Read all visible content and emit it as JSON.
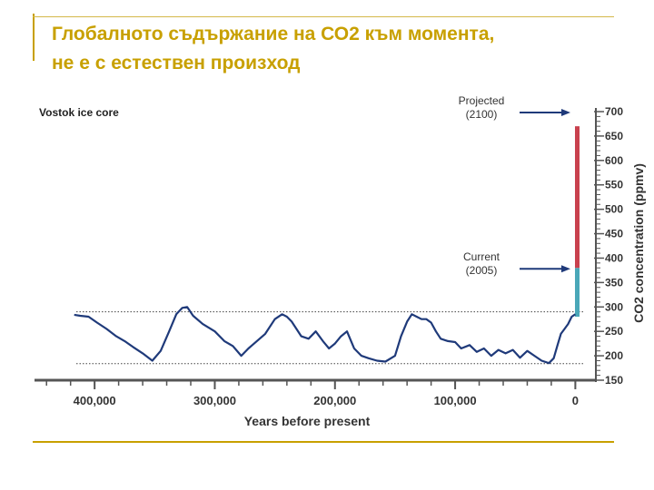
{
  "slide": {
    "title_line1": "Глобалното съдържание на СО2 към момента,",
    "title_line2": "не е с естествен произход",
    "accent_color": "#c8a000"
  },
  "chart_data": {
    "type": "line",
    "panel_title": "Vostok ice core",
    "xlabel": "Years before present",
    "ylabel": "CO2 concentration (ppmv)",
    "x_ticks": [
      400000,
      300000,
      200000,
      100000,
      0
    ],
    "x_tick_labels": [
      "400,000",
      "300,000",
      "200,000",
      "100,000",
      "0"
    ],
    "xlim": [
      450000,
      -5000
    ],
    "y_ticks": [
      150,
      200,
      250,
      300,
      350,
      400,
      450,
      500,
      550,
      600,
      650,
      700
    ],
    "ylim": [
      150,
      700
    ],
    "reference_lines": [
      {
        "value": 290,
        "style": "dotted"
      },
      {
        "value": 184,
        "style": "dotted"
      }
    ],
    "annotations": [
      {
        "label_line1": "Projected",
        "label_line2": "(2100)",
        "value": 700
      },
      {
        "label_line1": "Current",
        "label_line2": "(2005)",
        "value": 380
      }
    ],
    "bars": [
      {
        "name": "current",
        "from": 280,
        "to": 380,
        "color": "#4aa7b8"
      },
      {
        "name": "projected",
        "from": 380,
        "to": 670,
        "color": "#c9414e"
      }
    ],
    "series": [
      {
        "name": "Vostok CO2",
        "color": "#1f3a7a",
        "x": [
          417000,
          412000,
          405000,
          398000,
          390000,
          382000,
          375000,
          368000,
          360000,
          352000,
          345000,
          338000,
          332000,
          327000,
          323000,
          318000,
          310000,
          300000,
          292000,
          285000,
          278000,
          272000,
          265000,
          258000,
          250000,
          244000,
          240000,
          236000,
          232000,
          228000,
          222000,
          216000,
          210000,
          205000,
          200000,
          195000,
          190000,
          184000,
          178000,
          172000,
          165000,
          158000,
          150000,
          145000,
          140000,
          136000,
          132000,
          128000,
          124000,
          120000,
          116000,
          112000,
          106000,
          100000,
          95000,
          88000,
          82000,
          76000,
          70000,
          64000,
          58000,
          52000,
          46000,
          40000,
          34000,
          28000,
          22000,
          18000,
          15000,
          12000,
          9000,
          6000,
          3000,
          0
        ],
        "values": [
          284,
          282,
          280,
          268,
          255,
          240,
          230,
          218,
          205,
          190,
          210,
          250,
          285,
          298,
          300,
          282,
          265,
          250,
          230,
          220,
          200,
          215,
          230,
          245,
          275,
          285,
          280,
          270,
          255,
          240,
          235,
          250,
          230,
          215,
          225,
          240,
          250,
          215,
          200,
          195,
          190,
          188,
          200,
          240,
          270,
          285,
          280,
          275,
          275,
          268,
          250,
          235,
          230,
          228,
          215,
          222,
          208,
          215,
          200,
          212,
          205,
          212,
          196,
          210,
          200,
          190,
          185,
          195,
          220,
          245,
          255,
          265,
          280,
          285
        ]
      }
    ]
  }
}
